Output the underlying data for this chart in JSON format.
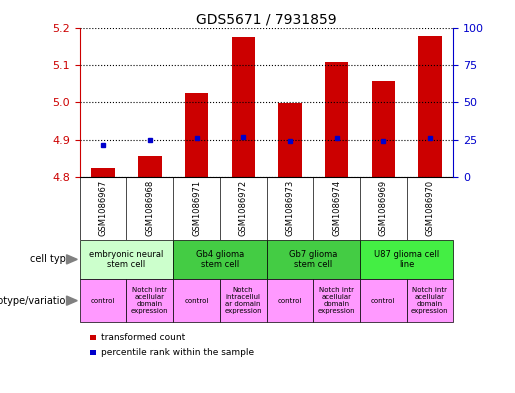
{
  "title": "GDS5671 / 7931859",
  "samples": [
    "GSM1086967",
    "GSM1086968",
    "GSM1086971",
    "GSM1086972",
    "GSM1086973",
    "GSM1086974",
    "GSM1086969",
    "GSM1086970"
  ],
  "red_values": [
    4.825,
    4.855,
    5.025,
    5.175,
    4.998,
    5.108,
    5.058,
    5.178
  ],
  "blue_values": [
    4.885,
    4.898,
    4.905,
    4.908,
    4.895,
    4.903,
    4.897,
    4.905
  ],
  "ylim_left": [
    4.8,
    5.2
  ],
  "ylim_right": [
    0,
    100
  ],
  "yticks_left": [
    4.8,
    4.9,
    5.0,
    5.1,
    5.2
  ],
  "yticks_right": [
    0,
    25,
    50,
    75,
    100
  ],
  "cell_types": [
    {
      "label": "embryonic neural\nstem cell",
      "start": 0,
      "end": 2,
      "color": "#ccffcc"
    },
    {
      "label": "Gb4 glioma\nstem cell",
      "start": 2,
      "end": 4,
      "color": "#44cc44"
    },
    {
      "label": "Gb7 glioma\nstem cell",
      "start": 4,
      "end": 6,
      "color": "#44cc44"
    },
    {
      "label": "U87 glioma cell\nline",
      "start": 6,
      "end": 8,
      "color": "#44ee44"
    }
  ],
  "genotypes": [
    {
      "label": "control",
      "start": 0,
      "end": 1,
      "color": "#ff99ff"
    },
    {
      "label": "Notch intr\nacellular\ndomain\nexpression",
      "start": 1,
      "end": 2,
      "color": "#ff99ff"
    },
    {
      "label": "control",
      "start": 2,
      "end": 3,
      "color": "#ff99ff"
    },
    {
      "label": "Notch\nintracellul\nar domain\nexpression",
      "start": 3,
      "end": 4,
      "color": "#ff99ff"
    },
    {
      "label": "control",
      "start": 4,
      "end": 5,
      "color": "#ff99ff"
    },
    {
      "label": "Notch intr\nacellular\ndomain\nexpression",
      "start": 5,
      "end": 6,
      "color": "#ff99ff"
    },
    {
      "label": "control",
      "start": 6,
      "end": 7,
      "color": "#ff99ff"
    },
    {
      "label": "Notch intr\nacellular\ndomain\nexpression",
      "start": 7,
      "end": 8,
      "color": "#ff99ff"
    }
  ],
  "bar_bottom": 4.8,
  "bar_width": 0.5,
  "red_color": "#cc0000",
  "blue_color": "#0000cc",
  "bg_color": "#ffffff",
  "left_axis_color": "#cc0000",
  "right_axis_color": "#0000cc",
  "xticklabel_bg": "#cccccc",
  "title_fontsize": 10,
  "label_fontsize": 7,
  "cell_fontsize": 6,
  "geno_fontsize": 5
}
